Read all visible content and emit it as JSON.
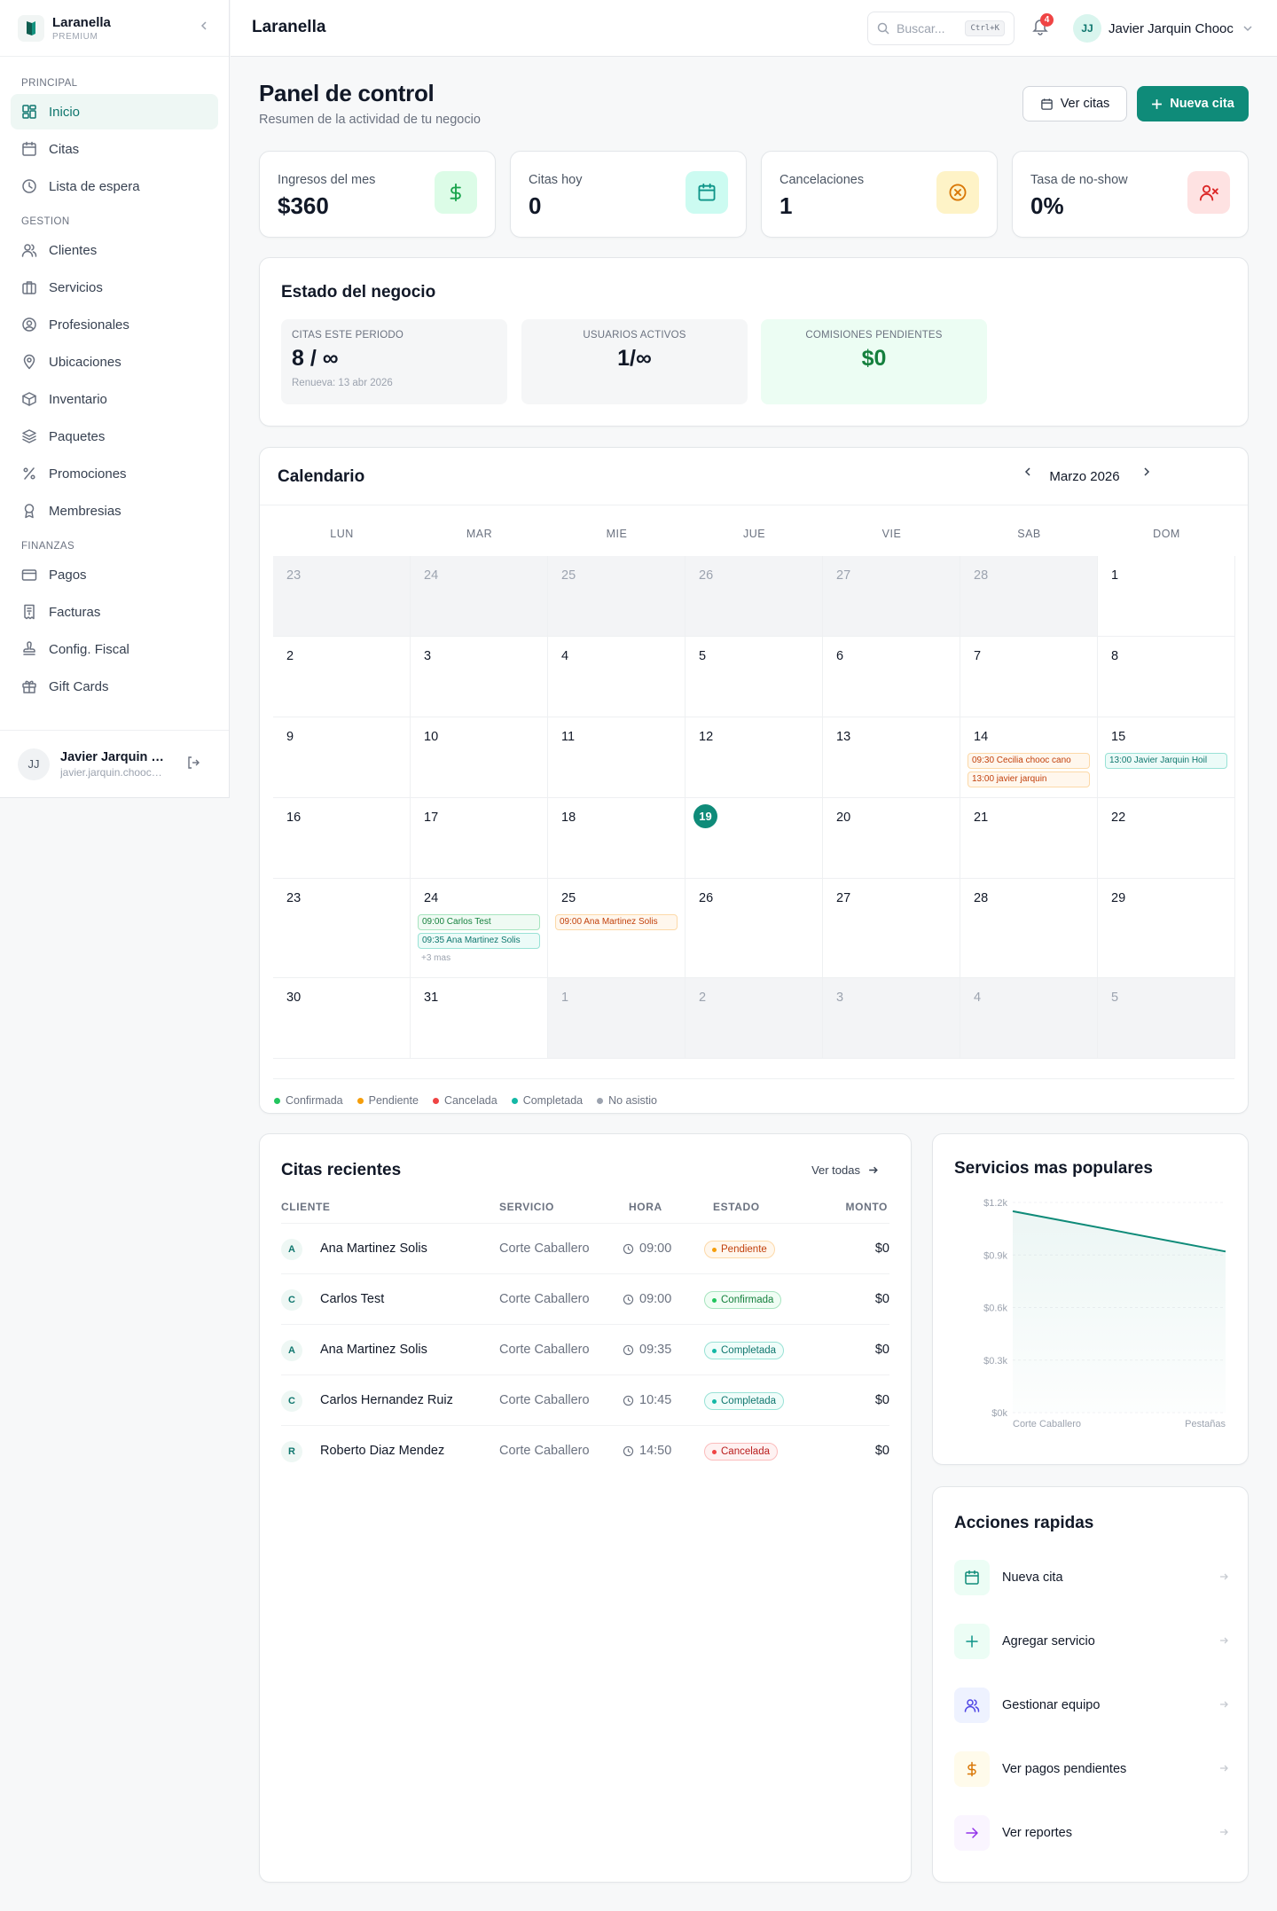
{
  "sidebar": {
    "brand": {
      "name": "Laranella",
      "plan": "PREMIUM"
    },
    "sections": [
      {
        "label": "PRINCIPAL",
        "items": [
          {
            "label": "Inicio",
            "icon": "grid-icon",
            "active": true
          },
          {
            "label": "Citas",
            "icon": "calendar-icon"
          },
          {
            "label": "Lista de espera",
            "icon": "clock-icon"
          }
        ]
      },
      {
        "label": "GESTION",
        "items": [
          {
            "label": "Clientes",
            "icon": "users-icon"
          },
          {
            "label": "Servicios",
            "icon": "briefcase-icon"
          },
          {
            "label": "Profesionales",
            "icon": "user-circle-icon"
          },
          {
            "label": "Ubicaciones",
            "icon": "map-pin-icon"
          },
          {
            "label": "Inventario",
            "icon": "box-icon"
          },
          {
            "label": "Paquetes",
            "icon": "layers-icon"
          },
          {
            "label": "Promociones",
            "icon": "percent-icon"
          },
          {
            "label": "Membresias",
            "icon": "award-icon"
          }
        ]
      },
      {
        "label": "FINANZAS",
        "items": [
          {
            "label": "Pagos",
            "icon": "credit-card-icon"
          },
          {
            "label": "Facturas",
            "icon": "receipt-icon"
          },
          {
            "label": "Config. Fiscal",
            "icon": "stamp-icon"
          },
          {
            "label": "Gift Cards",
            "icon": "gift-icon"
          }
        ]
      }
    ],
    "user": {
      "initials": "JJ",
      "name": "Javier Jarquin Chooc",
      "email": "javier.jarquin.chooc@gmail.com"
    }
  },
  "topbar": {
    "title": "Laranella",
    "search_placeholder": "Buscar...",
    "shortcut": "Ctrl+K",
    "notifications": "4",
    "user_initials": "JJ",
    "user_name": "Javier Jarquin Chooc"
  },
  "header": {
    "title": "Panel de control",
    "subtitle": "Resumen de la actividad de tu negocio",
    "view_button": "Ver citas",
    "new_button": "Nueva cita"
  },
  "stats": [
    {
      "label": "Ingresos del mes",
      "value": "$360",
      "icon": "dollar-icon",
      "bg": "#dcfce7",
      "fg": "#16a34a"
    },
    {
      "label": "Citas hoy",
      "value": "0",
      "icon": "calendar-icon",
      "bg": "#ccfbf1",
      "fg": "#0d9488"
    },
    {
      "label": "Cancelaciones",
      "value": "1",
      "icon": "x-circle-icon",
      "bg": "#fef3c7",
      "fg": "#d97706"
    },
    {
      "label": "Tasa de no-show",
      "value": "0%",
      "icon": "user-x-icon",
      "bg": "#fee2e2",
      "fg": "#dc2626"
    }
  ],
  "business": {
    "title": "Estado del negocio",
    "boxes": [
      {
        "label": "CITAS ESTE PERIODO",
        "value": "8 / ∞",
        "sub": "Renueva: 13 abr 2026"
      },
      {
        "label": "USUARIOS ACTIVOS",
        "value": "1/∞",
        "sub": ""
      },
      {
        "label": "COMISIONES PENDIENTES",
        "value": "$0",
        "sub": ""
      }
    ]
  },
  "calendar": {
    "title": "Calendario",
    "month": "Marzo 2026",
    "weekdays": [
      "LUN",
      "MAR",
      "MIE",
      "JUE",
      "VIE",
      "SAB",
      "DOM"
    ],
    "today": "19",
    "weeks": [
      [
        {
          "d": "23",
          "o": true
        },
        {
          "d": "24",
          "o": true
        },
        {
          "d": "25",
          "o": true
        },
        {
          "d": "26",
          "o": true
        },
        {
          "d": "27",
          "o": true
        },
        {
          "d": "28",
          "o": true
        },
        {
          "d": "1"
        }
      ],
      [
        {
          "d": "2"
        },
        {
          "d": "3"
        },
        {
          "d": "4"
        },
        {
          "d": "5"
        },
        {
          "d": "6"
        },
        {
          "d": "7"
        },
        {
          "d": "8"
        }
      ],
      [
        {
          "d": "9"
        },
        {
          "d": "10"
        },
        {
          "d": "11"
        },
        {
          "d": "12"
        },
        {
          "d": "13"
        },
        {
          "d": "14",
          "events": [
            {
              "text": "09:30 Cecilia chooc cano",
              "status": "pend"
            },
            {
              "text": "13:00 javier jarquin",
              "status": "pend"
            }
          ]
        },
        {
          "d": "15",
          "events": [
            {
              "text": "13:00 Javier Jarquin Hoil",
              "status": "comp"
            }
          ]
        }
      ],
      [
        {
          "d": "16"
        },
        {
          "d": "17"
        },
        {
          "d": "18"
        },
        {
          "d": "19"
        },
        {
          "d": "20"
        },
        {
          "d": "21"
        },
        {
          "d": "22"
        }
      ],
      [
        {
          "d": "23"
        },
        {
          "d": "24",
          "events": [
            {
              "text": "09:00 Carlos Test",
              "status": "conf"
            },
            {
              "text": "09:35 Ana Martinez Solis",
              "status": "comp"
            }
          ],
          "more": "+3 mas"
        },
        {
          "d": "25",
          "events": [
            {
              "text": "09:00 Ana Martinez Solis",
              "status": "pend"
            }
          ]
        },
        {
          "d": "26"
        },
        {
          "d": "27"
        },
        {
          "d": "28"
        },
        {
          "d": "29"
        }
      ],
      [
        {
          "d": "30"
        },
        {
          "d": "31"
        },
        {
          "d": "1",
          "o": true
        },
        {
          "d": "2",
          "o": true
        },
        {
          "d": "3",
          "o": true
        },
        {
          "d": "4",
          "o": true
        },
        {
          "d": "5",
          "o": true
        }
      ]
    ],
    "legend": [
      {
        "label": "Confirmada",
        "color": "#22c55e"
      },
      {
        "label": "Pendiente",
        "color": "#f59e0b"
      },
      {
        "label": "Cancelada",
        "color": "#ef4444"
      },
      {
        "label": "Completada",
        "color": "#14b8a6"
      },
      {
        "label": "No asistio",
        "color": "#9ca3af"
      }
    ]
  },
  "recent": {
    "title": "Citas recientes",
    "link": "Ver todas",
    "columns": [
      "CLIENTE",
      "SERVICIO",
      "HORA",
      "ESTADO",
      "MONTO"
    ],
    "rows": [
      {
        "initial": "A",
        "client": "Ana Martinez Solis",
        "service": "Corte Caballero",
        "time": "09:00",
        "status": "Pendiente",
        "cls": "b-pend",
        "dot": "#f59e0b",
        "amount": "$0"
      },
      {
        "initial": "C",
        "client": "Carlos Test",
        "service": "Corte Caballero",
        "time": "09:00",
        "status": "Confirmada",
        "cls": "b-conf",
        "dot": "#22c55e",
        "amount": "$0"
      },
      {
        "initial": "A",
        "client": "Ana Martinez Solis",
        "service": "Corte Caballero",
        "time": "09:35",
        "status": "Completada",
        "cls": "b-comp",
        "dot": "#14b8a6",
        "amount": "$0"
      },
      {
        "initial": "C",
        "client": "Carlos Hernandez Ruiz",
        "service": "Corte Caballero",
        "time": "10:45",
        "status": "Completada",
        "cls": "b-comp",
        "dot": "#14b8a6",
        "amount": "$0"
      },
      {
        "initial": "R",
        "client": "Roberto Diaz Mendez",
        "service": "Corte Caballero",
        "time": "14:50",
        "status": "Cancelada",
        "cls": "b-canc",
        "dot": "#ef4444",
        "amount": "$0"
      }
    ]
  },
  "chart_data": {
    "type": "area",
    "title": "Servicios mas populares",
    "categories": [
      "Corte Caballero",
      "Pestañas"
    ],
    "series": [
      {
        "values": [
          1150,
          920
        ]
      }
    ],
    "yticks": [
      "$0k",
      "$0.3k",
      "$0.6k",
      "$0.9k",
      "$1.2k"
    ],
    "ylim": [
      0,
      1200
    ],
    "color": "#0f8b79"
  },
  "quick": {
    "title": "Acciones rapidas",
    "items": [
      {
        "label": "Nueva cita",
        "icon": "calendar-icon",
        "bg": "#ecfdf5",
        "fg": "#0f8b79"
      },
      {
        "label": "Agregar servicio",
        "icon": "plus-icon",
        "bg": "#ecfdf5",
        "fg": "#0d9488"
      },
      {
        "label": "Gestionar equipo",
        "icon": "users-icon",
        "bg": "#eef2ff",
        "fg": "#4f46e5"
      },
      {
        "label": "Ver pagos pendientes",
        "icon": "dollar-icon",
        "bg": "#fffbeb",
        "fg": "#d97706"
      },
      {
        "label": "Ver reportes",
        "icon": "arrow-right-icon",
        "bg": "#faf5ff",
        "fg": "#9333ea"
      }
    ]
  }
}
